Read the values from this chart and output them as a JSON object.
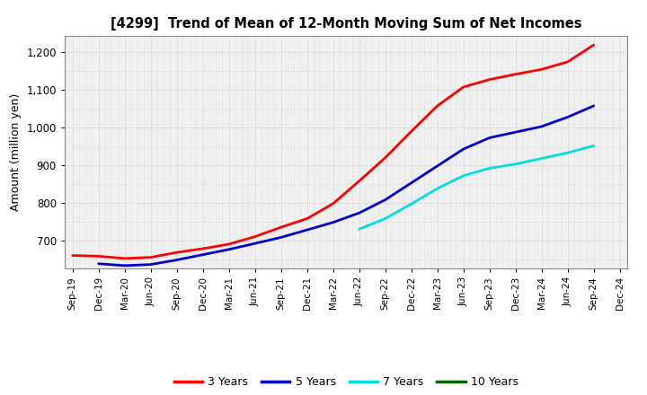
{
  "title": "[4299]  Trend of Mean of 12-Month Moving Sum of Net Incomes",
  "ylabel": "Amount (million yen)",
  "plot_bg_color": "#f0f0f0",
  "fig_bg_color": "#ffffff",
  "grid_color": "#bbbbbb",
  "ylim": [
    625,
    1245
  ],
  "yticks": [
    700,
    800,
    900,
    1000,
    1100,
    1200
  ],
  "x_labels": [
    "Sep-19",
    "Dec-19",
    "Mar-20",
    "Jun-20",
    "Sep-20",
    "Dec-20",
    "Mar-21",
    "Jun-21",
    "Sep-21",
    "Dec-21",
    "Mar-22",
    "Jun-22",
    "Sep-22",
    "Dec-22",
    "Mar-23",
    "Jun-23",
    "Sep-23",
    "Dec-23",
    "Mar-24",
    "Jun-24",
    "Sep-24",
    "Dec-24"
  ],
  "series": {
    "3 Years": {
      "color": "#ff0000",
      "values": [
        660,
        658,
        652,
        655,
        668,
        678,
        690,
        710,
        735,
        758,
        798,
        858,
        920,
        990,
        1058,
        1108,
        1128,
        1142,
        1155,
        1175,
        1220,
        null
      ]
    },
    "5 Years": {
      "color": "#0000cc",
      "values": [
        null,
        638,
        633,
        636,
        648,
        662,
        676,
        692,
        708,
        728,
        748,
        773,
        808,
        853,
        898,
        943,
        973,
        988,
        1003,
        1028,
        1058,
        null
      ]
    },
    "7 Years": {
      "color": "#00dddd",
      "values": [
        null,
        null,
        null,
        null,
        null,
        null,
        null,
        null,
        null,
        null,
        null,
        730,
        758,
        797,
        838,
        872,
        892,
        903,
        918,
        933,
        952,
        null
      ]
    },
    "10 Years": {
      "color": "#006600",
      "values": [
        null,
        null,
        null,
        null,
        null,
        null,
        null,
        null,
        null,
        null,
        null,
        null,
        null,
        null,
        null,
        null,
        null,
        null,
        null,
        null,
        null,
        null
      ]
    }
  },
  "legend_labels": [
    "3 Years",
    "5 Years",
    "7 Years",
    "10 Years"
  ],
  "legend_colors": [
    "#ff0000",
    "#0000cc",
    "#00dddd",
    "#006600"
  ]
}
